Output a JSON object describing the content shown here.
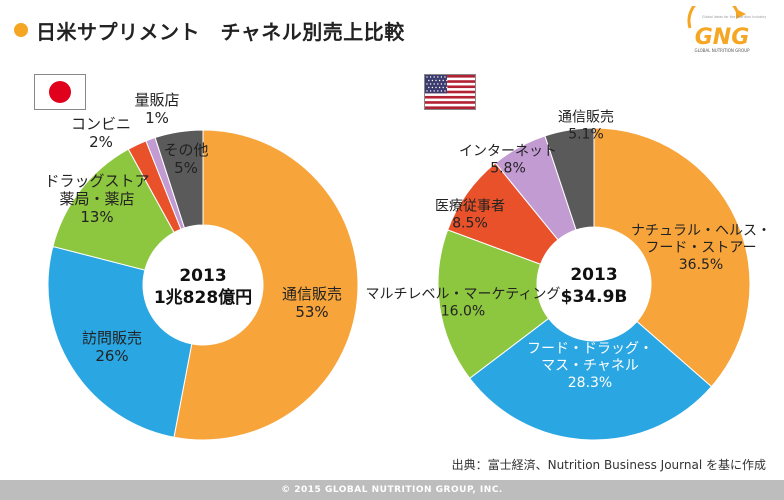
{
  "header": {
    "title": "日米サプリメント　チャネル別売上比較"
  },
  "logo": {
    "text": "GNG",
    "tagline": "Global ideas for the Nutrition Industry",
    "subtitle": "GLOBAL NUTRITION GROUP"
  },
  "flags": {
    "japan": "japan-flag-icon",
    "usa": "usa-flag-icon"
  },
  "chart_data": [
    {
      "type": "pie",
      "style": "donut",
      "country": "Japan",
      "center_label": [
        "2013",
        "1兆828億円"
      ],
      "slices": [
        {
          "label": [
            "通信販売"
          ],
          "value": 53,
          "display": "53%",
          "color": "#f7a43a",
          "label_color": "#222"
        },
        {
          "label": [
            "訪問販売"
          ],
          "value": 26,
          "display": "26%",
          "color": "#2aa6e2",
          "label_color": "#222"
        },
        {
          "label": [
            "ドラッグストア",
            "薬局・薬店"
          ],
          "value": 13,
          "display": "13%",
          "color": "#8dc63f",
          "label_color": "#222"
        },
        {
          "label": [
            "コンビニ"
          ],
          "value": 2,
          "display": "2%",
          "color": "#e8512a",
          "label_color": "#222"
        },
        {
          "label": [
            "量販店"
          ],
          "value": 1,
          "display": "1%",
          "color": "#c39bd3",
          "label_color": "#222"
        },
        {
          "label": [
            "その他"
          ],
          "value": 5,
          "display": "5%",
          "color": "#5a5a5a",
          "label_color": "#222"
        }
      ]
    },
    {
      "type": "pie",
      "style": "donut",
      "country": "USA",
      "center_label": [
        "2013",
        "$34.9B"
      ],
      "slices": [
        {
          "label": [
            "ナチュラル・ヘルス・",
            "フード・ストアー"
          ],
          "value": 36.5,
          "display": "36.5%",
          "color": "#f7a43a",
          "label_color": "#222"
        },
        {
          "label": [
            "フード・ドラッグ・",
            "マス・チャネル"
          ],
          "value": 28.3,
          "display": "28.3%",
          "color": "#2aa6e2",
          "label_color": "#ffffff"
        },
        {
          "label": [
            "マルチレベル・マーケティング"
          ],
          "value": 16.0,
          "display": "16.0%",
          "color": "#8dc63f",
          "label_color": "#222"
        },
        {
          "label": [
            "医療従事者"
          ],
          "value": 8.5,
          "display": "8.5%",
          "color": "#e8512a",
          "label_color": "#222"
        },
        {
          "label": [
            "インターネット"
          ],
          "value": 5.8,
          "display": "5.8%",
          "color": "#c39bd3",
          "label_color": "#222"
        },
        {
          "label": [
            "通信販売"
          ],
          "value": 5.1,
          "display": "5.1%",
          "color": "#5a5a5a",
          "label_color": "#222"
        }
      ]
    }
  ],
  "source": "出典：富士経済、Nutrition Business Journal を基に作成",
  "footer": "© 2015 GLOBAL NUTRITION GROUP, INC."
}
